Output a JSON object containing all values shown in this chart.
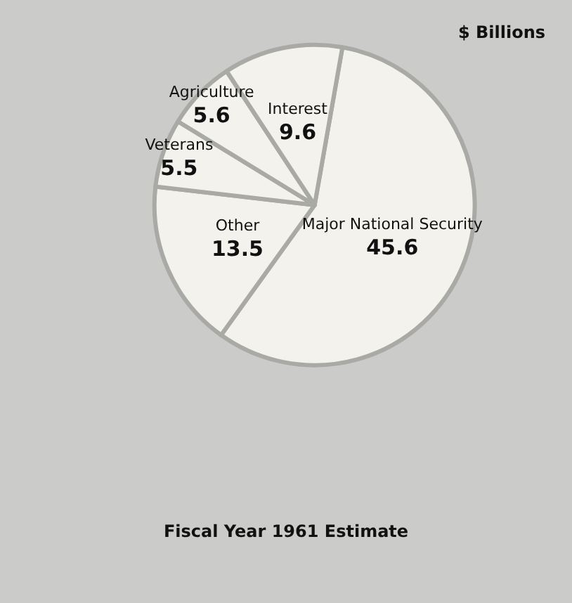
{
  "chart_data": {
    "type": "pie",
    "title": "$ Billions",
    "annotations": [
      "Fiscal Year 1961 Estimate"
    ],
    "categories": [
      "Major National Security",
      "Other",
      "Veterans",
      "Agriculture",
      "Interest"
    ],
    "values": [
      45.6,
      13.5,
      5.5,
      5.6,
      9.6
    ],
    "colors": [
      "#f3f2ec",
      "#f3f2ec",
      "#f3f2ec",
      "#f3f2ec",
      "#f3f2ec"
    ],
    "data_labels": true,
    "legend": false
  }
}
